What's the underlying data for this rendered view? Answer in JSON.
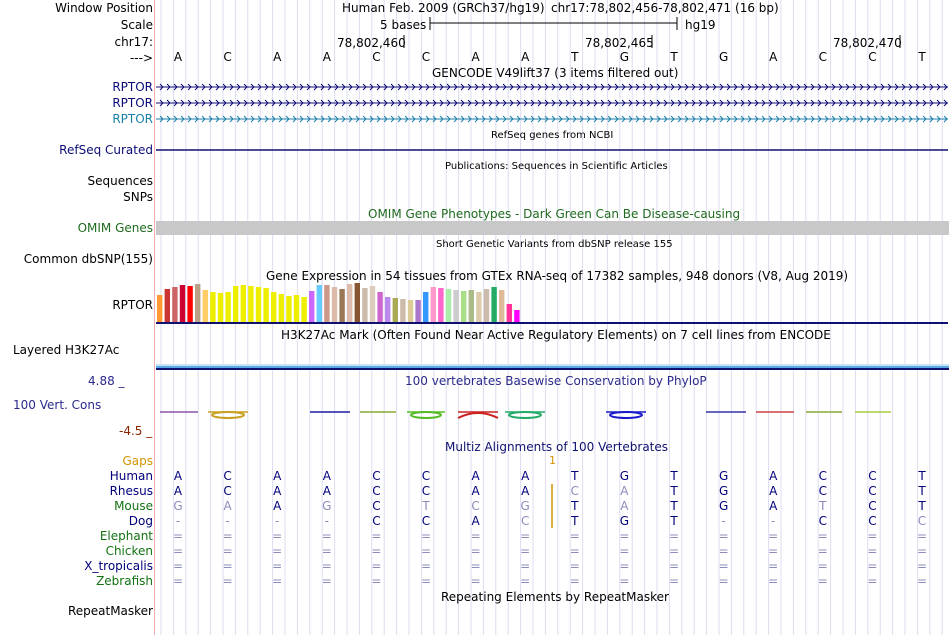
{
  "header": {
    "label_window_position": "Window Position",
    "label_scale": "Scale",
    "label_chrom": "chr17:",
    "label_strand": "--->",
    "assembly": "Human Feb. 2009 (GRCh37/hg19)",
    "position": "chr17:78,802,456-78,802,471 (16 bp)",
    "scale_text": "5 bases",
    "scale_db": "hg19",
    "coords": [
      "78,802,460",
      "78,802,465",
      "78,802,470"
    ]
  },
  "sequence": [
    "A",
    "C",
    "A",
    "A",
    "C",
    "C",
    "A",
    "A",
    "T",
    "G",
    "T",
    "G",
    "A",
    "C",
    "C",
    "T"
  ],
  "tracks": {
    "gencode": {
      "title": "GENCODE V49lift37 (3 items filtered out)",
      "items": [
        "RPTOR",
        "RPTOR",
        "RPTOR"
      ]
    },
    "refseq": {
      "title": "RefSeq genes from NCBI",
      "label": "RefSeq Curated"
    },
    "publications": {
      "title": "Publications: Sequences in Scientific Articles",
      "labels": [
        "Sequences",
        "SNPs"
      ]
    },
    "omim": {
      "title": "OMIM Gene Phenotypes - Dark Green Can Be Disease-causing",
      "label": "OMIM Genes"
    },
    "dbsnp": {
      "title": "Short Genetic Variants from dbSNP release 155",
      "label": "Common dbSNP(155)"
    },
    "gtex": {
      "title": "Gene Expression in 54 tissues from GTEx RNA-seq of 17382 samples, 948 donors (V8, Aug 2019)",
      "label": "RPTOR"
    },
    "h3k27ac": {
      "title": "H3K27Ac Mark (Often Found Near Active Regulatory Elements) on 7 cell lines from ENCODE",
      "label": "Layered H3K27Ac"
    },
    "phylop": {
      "title": "100 vertebrates Basewise Conservation by PhyloP",
      "label": "100 Vert. Cons",
      "max": "4.88 _",
      "min": "-4.5 _"
    },
    "multiz": {
      "title": "Multiz Alignments of 100 Vertebrates",
      "gaps_label": "Gaps",
      "gap_value": "1",
      "species": [
        {
          "name": "Human",
          "bases": [
            "A",
            "C",
            "A",
            "A",
            "C",
            "C",
            "A",
            "A",
            "T",
            "G",
            "T",
            "G",
            "A",
            "C",
            "C",
            "T"
          ]
        },
        {
          "name": "Rhesus",
          "bases": [
            "A",
            "C",
            "A",
            "A",
            "C",
            "C",
            "A",
            "A",
            "C",
            "A",
            "T",
            "G",
            "A",
            "C",
            "C",
            "T"
          ]
        },
        {
          "name": "Mouse",
          "bases": [
            "G",
            "A",
            "A",
            "G",
            "C",
            "T",
            "C",
            "G",
            "T",
            "A",
            "T",
            "G",
            "A",
            "T",
            "C",
            "T"
          ]
        },
        {
          "name": "Dog",
          "bases": [
            "-",
            "-",
            "-",
            "-",
            "C",
            "C",
            "A",
            "C",
            "T",
            "G",
            "T",
            "-",
            "-",
            "C",
            "C",
            "C"
          ]
        },
        {
          "name": "Elephant",
          "bases": [
            "=",
            "=",
            "=",
            "=",
            "=",
            "=",
            "=",
            "=",
            "=",
            "=",
            "=",
            "=",
            "=",
            "=",
            "=",
            "="
          ]
        },
        {
          "name": "Chicken",
          "bases": [
            "=",
            "=",
            "=",
            "=",
            "=",
            "=",
            "=",
            "=",
            "=",
            "=",
            "=",
            "=",
            "=",
            "=",
            "=",
            "="
          ]
        },
        {
          "name": "X_tropicalis",
          "bases": [
            "=",
            "=",
            "=",
            "=",
            "=",
            "=",
            "=",
            "=",
            "=",
            "=",
            "=",
            "=",
            "=",
            "=",
            "=",
            "="
          ]
        },
        {
          "name": "Zebrafish",
          "bases": [
            "=",
            "=",
            "=",
            "=",
            "=",
            "=",
            "=",
            "=",
            "=",
            "=",
            "=",
            "=",
            "=",
            "=",
            "=",
            "="
          ]
        }
      ]
    },
    "repeatmasker": {
      "title": "Repeating Elements by RepeatMasker",
      "label": "RepeatMasker"
    }
  },
  "colors": {
    "gencode_dark": "#0c0c78",
    "gencode_light": "#1a7fa8",
    "omim_bar": "#c8c8c8",
    "omim_green": "#1f6b1f",
    "navy": "#101070",
    "phylop_label": "#2a2a8c",
    "phylop_min": "#8b2500",
    "gaps": "#d29400",
    "species_dark": "#00007a",
    "species_green": "#137213",
    "h3k27ac": "#5aa8e6"
  },
  "gtex_bar_colors": [
    "#ff9933",
    "#cc3333",
    "#cc6666",
    "#cc0033",
    "#ff0000",
    "#bba088",
    "#ffcc66",
    "#eeee00",
    "#eeee00",
    "#eeee00",
    "#eeee00",
    "#eeee00",
    "#eeee00",
    "#eeee00",
    "#eeee00",
    "#eeee00",
    "#eeee00",
    "#eeee00",
    "#eeee00",
    "#eeee00",
    "#cc66ff",
    "#66ccff",
    "#cc9988",
    "#ddbbaa",
    "#997755",
    "#ddbbaa",
    "#885533",
    "#ccbbaa",
    "#ddccbb",
    "#cc66cc",
    "#bb88ee",
    "#aaaa55",
    "#ccbbaa",
    "#ddcc99",
    "#aa77cc",
    "#3399ff",
    "#ff99cc",
    "#ff66cc",
    "#aaeeaa",
    "#cccccc",
    "#aadd88",
    "#aabb88",
    "#ddccaa",
    "#ccbbaa",
    "#22aa66",
    "#ddbb99",
    "#ff3399",
    "#ff00ff"
  ],
  "gtex_values": [
    27,
    33,
    35,
    37,
    36,
    38,
    32,
    30,
    29,
    30,
    36,
    37,
    36,
    35,
    34,
    30,
    28,
    26,
    27,
    25,
    31,
    37,
    37,
    35,
    33,
    38,
    39,
    34,
    36,
    30,
    25,
    24,
    23,
    22,
    22,
    30,
    35,
    34,
    33,
    32,
    31,
    32,
    30,
    33,
    35,
    32,
    18,
    12
  ]
}
